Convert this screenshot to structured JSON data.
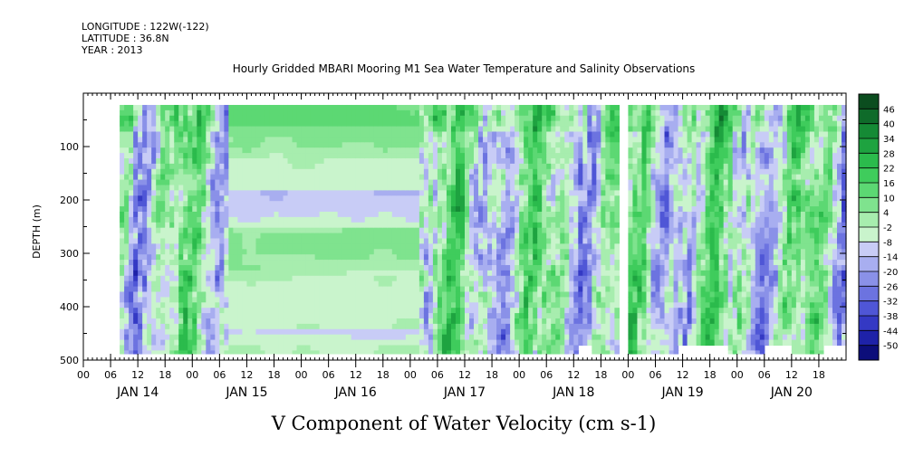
{
  "header": {
    "longitude": "LONGITUDE : 122W(-122)",
    "latitude": "LATITUDE : 36.8N",
    "year": "YEAR : 2013"
  },
  "chart_data": {
    "type": "heatmap",
    "title": "Hourly Gridded MBARI Mooring M1 Sea Water Temperature and Salinity Observations",
    "xlabel": "V Component of Water Velocity (cm s-1)",
    "ylabel": "DEPTH (m)",
    "y_inverted": true,
    "ylim": [
      0,
      500
    ],
    "y_ticks": [
      100,
      200,
      300,
      400,
      500
    ],
    "y_minor_ticks": [
      50,
      150,
      250,
      350,
      450
    ],
    "x_range_hours": [
      0,
      168
    ],
    "x_hour_ticks": [
      "00",
      "06",
      "12",
      "18",
      "00",
      "06",
      "12",
      "18",
      "00",
      "06",
      "12",
      "18",
      "00",
      "06",
      "12",
      "18",
      "00",
      "06",
      "12",
      "18",
      "00",
      "06",
      "12",
      "18",
      "00",
      "06",
      "12",
      "18"
    ],
    "x_day_labels": [
      "JAN 14",
      "JAN 15",
      "JAN 16",
      "JAN 17",
      "JAN 18",
      "JAN 19",
      "JAN 20"
    ],
    "colorbar": {
      "labels": [
        "46",
        "40",
        "34",
        "28",
        "22",
        "16",
        "10",
        "4",
        "-2",
        "-8",
        "-14",
        "-20",
        "-26",
        "-32",
        "-38",
        "-44",
        "-50"
      ],
      "colors": [
        "#0b4d1f",
        "#0f6b2a",
        "#158a35",
        "#1ea340",
        "#2bbb4c",
        "#3fcc5c",
        "#5cd873",
        "#7fe38e",
        "#a7edae",
        "#c9f4cc",
        "#c8ccf6",
        "#a8aef0",
        "#8a91e8",
        "#6c73e0",
        "#4f56d6",
        "#3439c4",
        "#1e22a8",
        "#0c0e7a"
      ],
      "color_min": -50,
      "color_max": 52
    },
    "grid": false
  }
}
